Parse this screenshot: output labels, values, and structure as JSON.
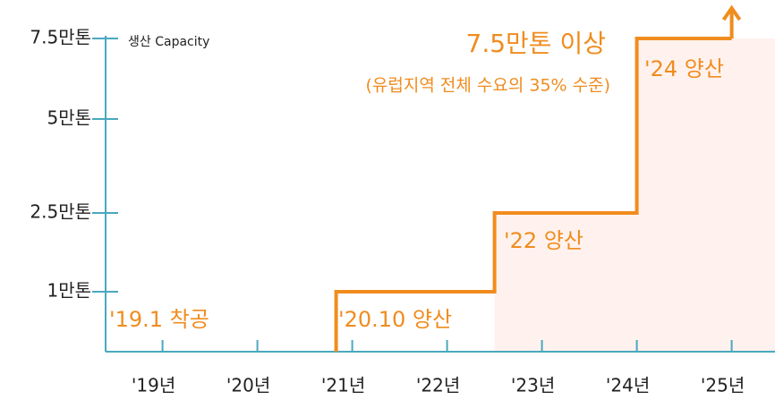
{
  "chart_data": {
    "type": "line",
    "y_axis_label": "생산 Capacity",
    "x": [
      2020.83,
      2020.83,
      2022.5,
      2022.5,
      2024,
      2024,
      2025
    ],
    "series": [
      {
        "color": "#f08c1e",
        "values": [
          0,
          1,
          1,
          2.5,
          2.5,
          7.5,
          7.5
        ]
      }
    ],
    "xlim": [
      2018.4,
      2025.4
    ],
    "xticks": [
      {
        "value": 2019,
        "label": "'19년"
      },
      {
        "value": 2020,
        "label": "'20년"
      },
      {
        "value": 2021,
        "label": "'21년"
      },
      {
        "value": 2022,
        "label": "'22년"
      },
      {
        "value": 2023,
        "label": "'23년"
      },
      {
        "value": 2024,
        "label": "'24년"
      },
      {
        "value": 2025,
        "label": "'25년"
      }
    ],
    "ylim": [
      0,
      7.5
    ],
    "yticks": [
      {
        "value": 1,
        "label": "1만톤"
      },
      {
        "value": 2.5,
        "label": "2.5만톤"
      },
      {
        "value": 5,
        "label": "5만톤"
      },
      {
        "value": 7.5,
        "label": "7.5만톤"
      }
    ],
    "axis_color": "#4aa8c0",
    "annotations": [
      "'19.1 착공",
      "'20.10 양산",
      "'22 양산",
      "'24 양산",
      "7.5만톤 이상",
      "(유럽지역 전체 수요의 35% 수준)"
    ]
  }
}
